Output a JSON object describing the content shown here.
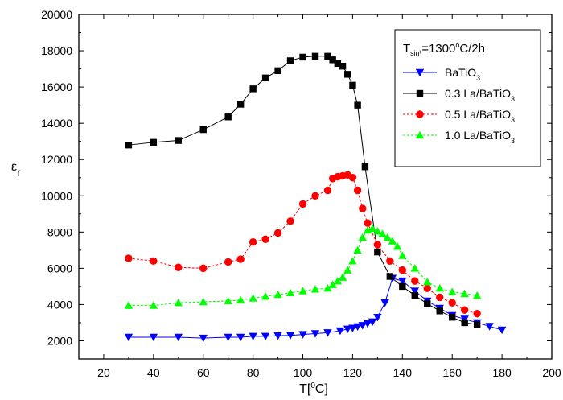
{
  "chart_data": {
    "type": "scatter",
    "xlabel": {
      "main": "T[",
      "sup": "0",
      "tail": "C]"
    },
    "ylabel": {
      "main": "ε",
      "sub": "r"
    },
    "xlim": [
      10,
      200
    ],
    "ylim": [
      1000,
      20000
    ],
    "x_ticks": [
      20,
      40,
      60,
      80,
      100,
      120,
      140,
      160,
      180,
      200
    ],
    "y_ticks": [
      2000,
      4000,
      6000,
      8000,
      10000,
      12000,
      14000,
      16000,
      18000,
      20000
    ],
    "grid": false,
    "legend_position": "top-right",
    "legend_title": {
      "t": "T",
      "sub": "sin\\",
      "rest": "=1300",
      "sup": "o",
      "tail": "C/2h"
    },
    "series": [
      {
        "name": "BaTiO3",
        "label_main": "BaTiO",
        "label_sub": "3",
        "color": "#0000ff",
        "marker": "triangle-down",
        "x": [
          30,
          40,
          50,
          60,
          70,
          75,
          80,
          85,
          90,
          95,
          100,
          105,
          110,
          115,
          118,
          120,
          122,
          124,
          126,
          128,
          130,
          133,
          136,
          140,
          145,
          150,
          155,
          160,
          165,
          170,
          175,
          180
        ],
        "y": [
          2200,
          2200,
          2200,
          2150,
          2200,
          2200,
          2250,
          2250,
          2280,
          2300,
          2350,
          2400,
          2450,
          2550,
          2650,
          2700,
          2780,
          2850,
          2950,
          3050,
          3300,
          4100,
          5450,
          5300,
          4750,
          4200,
          3800,
          3400,
          3200,
          3000,
          2800,
          2600
        ]
      },
      {
        "name": "0.3 La/BaTiO3",
        "label_main": "0.3 La/BaTiO",
        "label_sub": "3",
        "color": "#000000",
        "marker": "square",
        "x": [
          30,
          40,
          50,
          60,
          70,
          75,
          80,
          85,
          90,
          95,
          100,
          105,
          110,
          112,
          114,
          116,
          118,
          120,
          122,
          125,
          130,
          135,
          140,
          145,
          150,
          155,
          160,
          165,
          170
        ],
        "y": [
          12800,
          12950,
          13050,
          13650,
          14350,
          15050,
          15900,
          16500,
          16900,
          17450,
          17650,
          17700,
          17700,
          17500,
          17300,
          17150,
          16700,
          16100,
          15000,
          11600,
          6900,
          5550,
          5000,
          4500,
          4050,
          3650,
          3300,
          3000,
          2900
        ]
      },
      {
        "name": "0.5 La/BaTiO3",
        "label_main": "0.5 La/BaTiO",
        "label_sub": "3",
        "color": "#ff0000",
        "marker": "circle",
        "x": [
          30,
          40,
          50,
          60,
          70,
          75,
          80,
          85,
          90,
          95,
          100,
          105,
          110,
          112,
          114,
          116,
          118,
          120,
          122,
          124,
          126,
          130,
          135,
          140,
          145,
          150,
          155,
          160,
          165,
          170
        ],
        "y": [
          6550,
          6400,
          6050,
          6000,
          6350,
          6500,
          7450,
          7600,
          7950,
          8600,
          9550,
          10000,
          10300,
          10950,
          11050,
          11100,
          11150,
          11000,
          10300,
          9300,
          8500,
          7300,
          6400,
          5900,
          5300,
          4900,
          4400,
          4100,
          3700,
          3500
        ]
      },
      {
        "name": "1.0 La/BaTiO3",
        "label_main": "1.0 La/BaTiO",
        "label_sub": "3",
        "color": "#00ff00",
        "marker": "triangle-up",
        "x": [
          30,
          40,
          50,
          60,
          70,
          75,
          80,
          85,
          90,
          95,
          100,
          105,
          110,
          112,
          114,
          116,
          118,
          120,
          122,
          124,
          126,
          128,
          130,
          132,
          134,
          136,
          138,
          140,
          145,
          150,
          155,
          160,
          165,
          170
        ],
        "y": [
          3950,
          3950,
          4100,
          4150,
          4200,
          4250,
          4350,
          4450,
          4550,
          4650,
          4750,
          4850,
          4900,
          5100,
          5300,
          5500,
          5900,
          6400,
          7000,
          7700,
          8100,
          8200,
          8050,
          7900,
          7700,
          7500,
          7200,
          6700,
          6000,
          5250,
          4900,
          4700,
          4600,
          4500
        ]
      }
    ]
  }
}
